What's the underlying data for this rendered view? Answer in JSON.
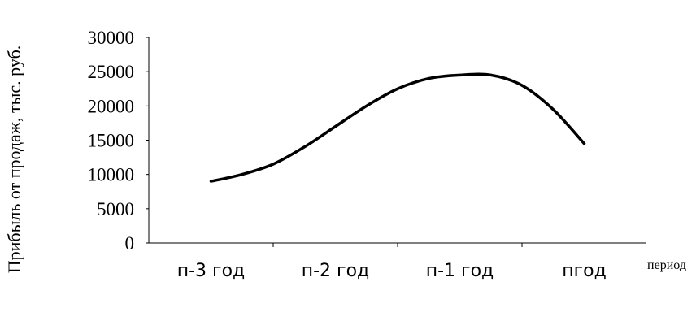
{
  "chart_data": {
    "type": "line",
    "ylabel": "Прибыль  от продаж, тыс. руб.",
    "xlabel": "период",
    "ylim": [
      0,
      30000
    ],
    "yticks": [
      "0",
      "5000",
      "10000",
      "15000",
      "20000",
      "25000",
      "30000"
    ],
    "categories": [
      "п-3 год",
      "п-2 год",
      "п-1 год",
      "пгод"
    ],
    "x": [
      0,
      0.25,
      0.5,
      0.75,
      1.0,
      1.25,
      1.5,
      1.75,
      2.0,
      2.25,
      2.5,
      2.75,
      3.0
    ],
    "series": [
      {
        "values": [
          9000,
          10000,
          11500,
          14000,
          17000,
          20000,
          22500,
          24000,
          24500,
          24500,
          23000,
          19500,
          14500
        ]
      }
    ],
    "grid": false,
    "legend": "none"
  }
}
